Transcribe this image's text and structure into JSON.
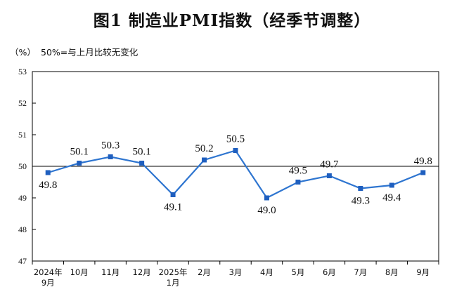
{
  "chart_data": {
    "type": "line",
    "title": "图1  制造业PMI指数（经季节调整）",
    "unit_label": "（%）",
    "note": "50%=与上月比较无变化",
    "categories": [
      [
        "2024年",
        "9月"
      ],
      [
        "10月"
      ],
      [
        "11月"
      ],
      [
        "12月"
      ],
      [
        "2025年",
        "1月"
      ],
      [
        "2月"
      ],
      [
        "3月"
      ],
      [
        "4月"
      ],
      [
        "5月"
      ],
      [
        "6月"
      ],
      [
        "7月"
      ],
      [
        "8月"
      ],
      [
        "9月"
      ]
    ],
    "values": [
      49.8,
      50.1,
      50.3,
      50.1,
      49.1,
      50.2,
      50.5,
      49.0,
      49.5,
      49.7,
      49.3,
      49.4,
      49.8
    ],
    "data_labels": [
      "49.8",
      "50.1",
      "50.3",
      "50.1",
      "49.1",
      "50.2",
      "50.5",
      "49.0",
      "49.5",
      "49.7",
      "49.3",
      "49.4",
      "49.8"
    ],
    "yticks": [
      "47",
      "48",
      "49",
      "50",
      "51",
      "52",
      "53"
    ],
    "ylim": [
      47,
      53
    ],
    "reference_line": 50,
    "grid": false,
    "colors": {
      "line": "#2e75d0",
      "marker": "#1f5fbf",
      "axis": "#000000"
    }
  }
}
